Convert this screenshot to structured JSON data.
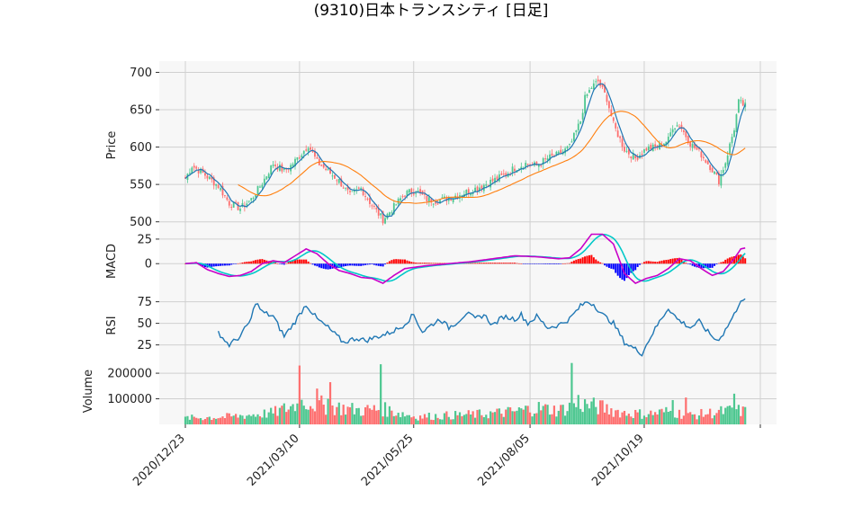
{
  "title": "(9310)日本トランスシティ [日足]",
  "chart_data": {
    "type": "candlestick",
    "title": "(9310)日本トランスシティ [日足]",
    "x_tick_labels": [
      "2020/12/23",
      "2021/03/10",
      "2021/05/25",
      "2021/08/05",
      "2021/10/19"
    ],
    "x_tick_positions": [
      0,
      52,
      104,
      157,
      209
    ],
    "days": 255,
    "colors": {
      "up": "#4dc790",
      "down": "#fe6f6f",
      "ma_short": "#1f77b4",
      "ma_long": "#ff7f0e",
      "macd": "#c800c8",
      "signal": "#00c8c8",
      "hist_pos": "#ff0000",
      "hist_neg": "#0000ff",
      "rsi": "#1f77b4"
    },
    "panels": [
      {
        "name": "price",
        "ylabel": "Price",
        "ylim": [
          490,
          715
        ],
        "yticks": [
          500,
          550,
          600,
          650,
          700
        ]
      },
      {
        "name": "macd",
        "ylabel": "MACD",
        "ylim": [
          -30,
          35
        ],
        "yticks": [
          0,
          25
        ]
      },
      {
        "name": "rsi",
        "ylabel": "RSI",
        "ylim": [
          10,
          85
        ],
        "yticks": [
          25,
          50,
          75
        ]
      },
      {
        "name": "volume",
        "ylabel": "Volume",
        "ylim": [
          0,
          260000
        ],
        "yticks": [
          100000,
          200000
        ],
        "ytick_labels": [
          "100000",
          "200000"
        ]
      }
    ],
    "close_anchors": [
      [
        0,
        558
      ],
      [
        3,
        575
      ],
      [
        8,
        565
      ],
      [
        15,
        548
      ],
      [
        20,
        525
      ],
      [
        25,
        518
      ],
      [
        30,
        530
      ],
      [
        35,
        552
      ],
      [
        40,
        578
      ],
      [
        45,
        568
      ],
      [
        48,
        575
      ],
      [
        52,
        588
      ],
      [
        56,
        603
      ],
      [
        60,
        580
      ],
      [
        64,
        570
      ],
      [
        70,
        555
      ],
      [
        75,
        535
      ],
      [
        80,
        545
      ],
      [
        85,
        522
      ],
      [
        90,
        503
      ],
      [
        95,
        520
      ],
      [
        100,
        538
      ],
      [
        105,
        542
      ],
      [
        110,
        530
      ],
      [
        115,
        528
      ],
      [
        120,
        532
      ],
      [
        125,
        537
      ],
      [
        130,
        542
      ],
      [
        135,
        548
      ],
      [
        140,
        555
      ],
      [
        145,
        562
      ],
      [
        150,
        572
      ],
      [
        155,
        578
      ],
      [
        160,
        575
      ],
      [
        165,
        585
      ],
      [
        170,
        590
      ],
      [
        175,
        600
      ],
      [
        180,
        635
      ],
      [
        182,
        665
      ],
      [
        185,
        680
      ],
      [
        188,
        688
      ],
      [
        192,
        665
      ],
      [
        195,
        630
      ],
      [
        200,
        597
      ],
      [
        205,
        585
      ],
      [
        210,
        598
      ],
      [
        215,
        600
      ],
      [
        220,
        610
      ],
      [
        222,
        628
      ],
      [
        225,
        630
      ],
      [
        230,
        605
      ],
      [
        235,
        590
      ],
      [
        240,
        570
      ],
      [
        243,
        555
      ],
      [
        246,
        580
      ],
      [
        250,
        625
      ],
      [
        252,
        660
      ],
      [
        255,
        655
      ]
    ],
    "macd_anchors": [
      [
        0,
        0
      ],
      [
        5,
        1
      ],
      [
        10,
        -6
      ],
      [
        15,
        -10
      ],
      [
        20,
        -13
      ],
      [
        25,
        -12
      ],
      [
        30,
        -8
      ],
      [
        35,
        0
      ],
      [
        40,
        3
      ],
      [
        45,
        1
      ],
      [
        50,
        8
      ],
      [
        55,
        15
      ],
      [
        60,
        10
      ],
      [
        65,
        0
      ],
      [
        70,
        -7
      ],
      [
        75,
        -10
      ],
      [
        80,
        -14
      ],
      [
        85,
        -15
      ],
      [
        90,
        -20
      ],
      [
        95,
        -12
      ],
      [
        100,
        -5
      ],
      [
        110,
        -2
      ],
      [
        120,
        0
      ],
      [
        130,
        2
      ],
      [
        140,
        5
      ],
      [
        150,
        8
      ],
      [
        160,
        7
      ],
      [
        170,
        5
      ],
      [
        175,
        6
      ],
      [
        180,
        15
      ],
      [
        185,
        30
      ],
      [
        190,
        30
      ],
      [
        195,
        20
      ],
      [
        200,
        -10
      ],
      [
        205,
        -20
      ],
      [
        210,
        -15
      ],
      [
        215,
        -12
      ],
      [
        220,
        -5
      ],
      [
        225,
        5
      ],
      [
        230,
        3
      ],
      [
        235,
        -5
      ],
      [
        240,
        -12
      ],
      [
        245,
        -8
      ],
      [
        250,
        5
      ],
      [
        253,
        15
      ],
      [
        255,
        16
      ]
    ],
    "rsi_anchors": [
      [
        15,
        40
      ],
      [
        18,
        30
      ],
      [
        20,
        25
      ],
      [
        25,
        35
      ],
      [
        30,
        55
      ],
      [
        32,
        75
      ],
      [
        35,
        63
      ],
      [
        40,
        58
      ],
      [
        45,
        35
      ],
      [
        50,
        52
      ],
      [
        55,
        72
      ],
      [
        60,
        55
      ],
      [
        65,
        45
      ],
      [
        72,
        28
      ],
      [
        78,
        33
      ],
      [
        82,
        30
      ],
      [
        88,
        35
      ],
      [
        92,
        38
      ],
      [
        98,
        45
      ],
      [
        104,
        60
      ],
      [
        108,
        40
      ],
      [
        112,
        48
      ],
      [
        116,
        55
      ],
      [
        120,
        45
      ],
      [
        124,
        52
      ],
      [
        128,
        62
      ],
      [
        132,
        55
      ],
      [
        136,
        60
      ],
      [
        140,
        48
      ],
      [
        145,
        58
      ],
      [
        150,
        55
      ],
      [
        153,
        60
      ],
      [
        156,
        50
      ],
      [
        160,
        58
      ],
      [
        165,
        45
      ],
      [
        170,
        48
      ],
      [
        175,
        55
      ],
      [
        180,
        70
      ],
      [
        183,
        75
      ],
      [
        186,
        72
      ],
      [
        190,
        60
      ],
      [
        195,
        50
      ],
      [
        200,
        28
      ],
      [
        205,
        20
      ],
      [
        208,
        15
      ],
      [
        212,
        35
      ],
      [
        216,
        52
      ],
      [
        220,
        68
      ],
      [
        224,
        55
      ],
      [
        230,
        45
      ],
      [
        234,
        52
      ],
      [
        238,
        40
      ],
      [
        242,
        30
      ],
      [
        245,
        38
      ],
      [
        250,
        60
      ],
      [
        253,
        78
      ],
      [
        255,
        76
      ]
    ],
    "volume_anchors": [
      [
        0,
        25000
      ],
      [
        20,
        30000
      ],
      [
        40,
        45000
      ],
      [
        55,
        90000
      ],
      [
        65,
        70000
      ],
      [
        80,
        55000
      ],
      [
        90,
        60000
      ],
      [
        105,
        30000
      ],
      [
        120,
        35000
      ],
      [
        135,
        40000
      ],
      [
        150,
        50000
      ],
      [
        160,
        65000
      ],
      [
        170,
        55000
      ],
      [
        180,
        80000
      ],
      [
        190,
        65000
      ],
      [
        200,
        45000
      ],
      [
        210,
        40000
      ],
      [
        220,
        50000
      ],
      [
        230,
        35000
      ],
      [
        240,
        45000
      ],
      [
        250,
        55000
      ],
      [
        255,
        50000
      ]
    ],
    "volume_spikes": [
      [
        52,
        230000
      ],
      [
        66,
        165000
      ],
      [
        89,
        235000
      ],
      [
        176,
        240000
      ],
      [
        60,
        140000
      ],
      [
        65,
        100000
      ],
      [
        179,
        115000
      ],
      [
        222,
        95000
      ],
      [
        228,
        105000
      ],
      [
        250,
        120000
      ]
    ]
  }
}
